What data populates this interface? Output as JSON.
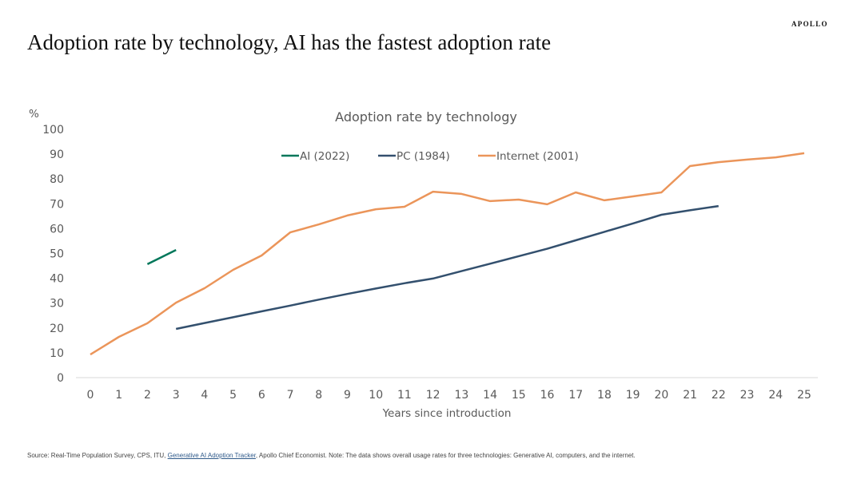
{
  "brand": "APOLLO",
  "page_title": "Adoption rate by technology, AI has the fastest adoption rate",
  "source": {
    "prefix": "Source: Real-Time Population Survey, CPS, ITU, ",
    "link_text": "Generative AI Adoption Tracker",
    "suffix": ", Apollo Chief Economist. Note: The data shows overall usage rates for three technologies: Generative AI, computers, and the internet."
  },
  "chart_data": {
    "type": "line",
    "title": "Adoption rate by technology",
    "xlabel": "Years since introduction",
    "ylabel": "%",
    "xlim": [
      0,
      25
    ],
    "ylim": [
      0,
      100
    ],
    "yticks": [
      0,
      10,
      20,
      30,
      40,
      50,
      60,
      70,
      80,
      90,
      100
    ],
    "xticks": [
      0,
      1,
      2,
      3,
      4,
      5,
      6,
      7,
      8,
      9,
      10,
      11,
      12,
      13,
      14,
      15,
      16,
      17,
      18,
      19,
      20,
      21,
      22,
      23,
      24,
      25
    ],
    "grid": false,
    "legend_position": "top-center",
    "series": [
      {
        "name": "AI (2022)",
        "color": "#00775a",
        "x": [
          2,
          3
        ],
        "values": [
          45.7,
          51.4
        ]
      },
      {
        "name": "PC (1984)",
        "color": "#33506e",
        "x": [
          3,
          4,
          5,
          6,
          7,
          8,
          9,
          10,
          11,
          12,
          13,
          14,
          15,
          16,
          17,
          18,
          19,
          20,
          21,
          22
        ],
        "values": [
          19.6,
          22.0,
          24.3,
          26.7,
          29.0,
          31.4,
          33.7,
          35.9,
          38.0,
          39.9,
          42.9,
          45.9,
          48.9,
          51.9,
          55.3,
          58.7,
          62.1,
          65.6,
          67.4,
          69.1
        ]
      },
      {
        "name": "Internet (2001)",
        "color": "#eb955a",
        "x": [
          0,
          1,
          2,
          3,
          4,
          5,
          6,
          7,
          8,
          9,
          10,
          11,
          12,
          13,
          14,
          15,
          16,
          17,
          18,
          19,
          20,
          21,
          22,
          23,
          24,
          25
        ],
        "values": [
          9.3,
          16.4,
          21.9,
          30.2,
          36.0,
          43.4,
          49.2,
          58.5,
          61.7,
          65.3,
          67.8,
          68.8,
          74.9,
          74.0,
          71.1,
          71.7,
          69.8,
          74.6,
          71.4,
          73.0,
          74.6,
          85.2,
          86.8,
          87.8,
          88.7,
          90.4
        ]
      }
    ]
  }
}
